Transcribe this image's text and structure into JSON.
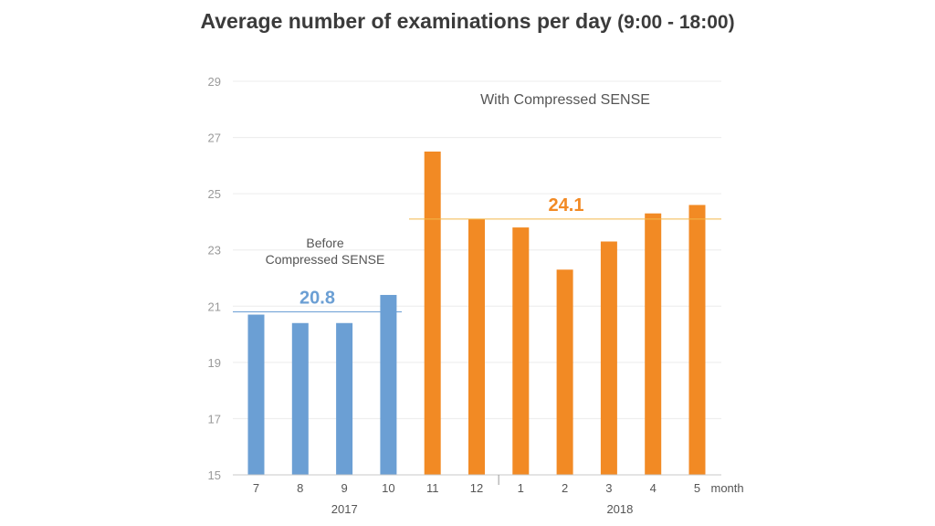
{
  "title": "Average number of examinations per day",
  "title_suffix": "(9:00 - 18:00)",
  "colors": {
    "before": "#6b9fd4",
    "after": "#f28a24",
    "avg_after_line": "#f2b84a"
  },
  "chart_data": {
    "type": "bar",
    "categories": [
      "7",
      "8",
      "9",
      "10",
      "11",
      "12",
      "1",
      "2",
      "3",
      "4",
      "5"
    ],
    "values": [
      20.7,
      20.4,
      20.4,
      21.4,
      26.5,
      24.1,
      23.8,
      22.3,
      23.3,
      24.3,
      24.6
    ],
    "groups": [
      "before",
      "before",
      "before",
      "before",
      "after",
      "after",
      "after",
      "after",
      "after",
      "after",
      "after"
    ],
    "xlabel": "month",
    "ylim": [
      15,
      29
    ],
    "yticks": [
      15,
      17,
      19,
      21,
      23,
      25,
      27,
      29
    ],
    "grid": true,
    "year_labels": [
      "2017",
      "2018"
    ],
    "averages": [
      {
        "group": "before",
        "value": 20.8,
        "label": "20.8"
      },
      {
        "group": "after",
        "value": 24.1,
        "label": "24.1"
      }
    ],
    "annotations": {
      "before_line1": "Before",
      "before_line2": "Compressed SENSE",
      "after": "With Compressed SENSE"
    }
  }
}
